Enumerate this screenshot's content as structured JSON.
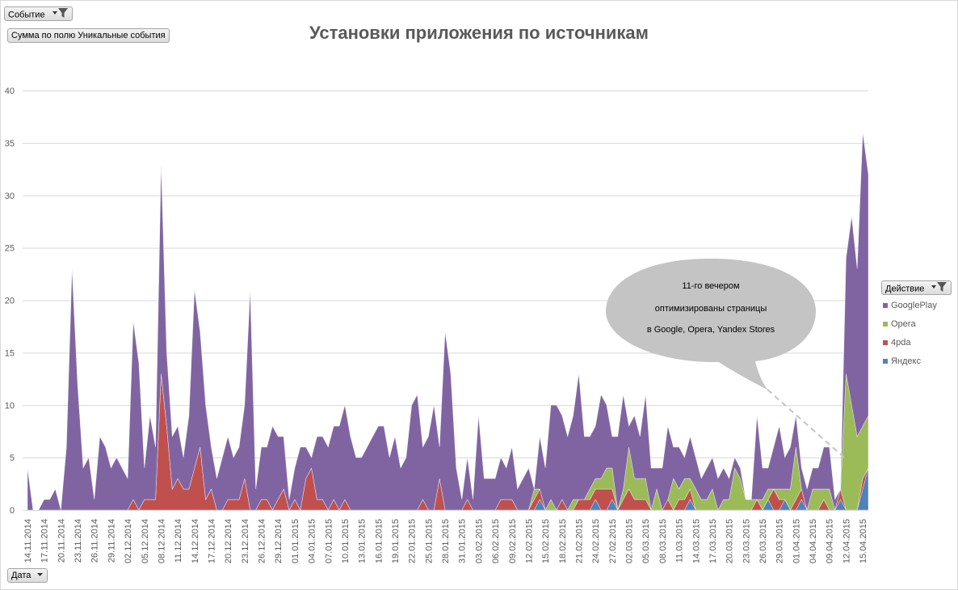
{
  "filters": {
    "event_label": "Событие",
    "value_field_label": "Сумма по полю Уникальные события",
    "axis_field_label": "Дата",
    "legend_field_label": "Действие"
  },
  "callout": {
    "line1": "11-го вечером",
    "line2": "оптимизированы страницы",
    "line3": "в Google, Opera, Yandex Stores"
  },
  "chart_data": {
    "type": "area",
    "stacked": true,
    "title": "Установки приложения по источникам",
    "xlabel": "",
    "ylabel": "",
    "ylim": [
      0,
      40
    ],
    "yticks": [
      0,
      5,
      10,
      15,
      20,
      25,
      30,
      35,
      40
    ],
    "grid": true,
    "legend_position": "right",
    "categories": [
      "14.11.2014",
      "15.11.2014",
      "16.11.2014",
      "17.11.2014",
      "18.11.2014",
      "19.11.2014",
      "20.11.2014",
      "21.11.2014",
      "22.11.2014",
      "23.11.2014",
      "24.11.2014",
      "25.11.2014",
      "26.11.2014",
      "27.11.2014",
      "28.11.2014",
      "29.11.2014",
      "30.11.2014",
      "01.12.2014",
      "02.12.2014",
      "03.12.2014",
      "04.12.2014",
      "05.12.2014",
      "06.12.2014",
      "07.12.2014",
      "08.12.2014",
      "09.12.2014",
      "10.12.2014",
      "11.12.2014",
      "12.12.2014",
      "13.12.2014",
      "14.12.2014",
      "15.12.2014",
      "16.12.2014",
      "17.12.2014",
      "18.12.2014",
      "19.12.2014",
      "20.12.2014",
      "21.12.2014",
      "22.12.2014",
      "23.12.2014",
      "24.12.2014",
      "25.12.2014",
      "26.12.2014",
      "27.12.2014",
      "28.12.2014",
      "29.12.2014",
      "30.12.2014",
      "31.12.2014",
      "01.01.2015",
      "02.01.2015",
      "03.01.2015",
      "04.01.2015",
      "05.01.2015",
      "06.01.2015",
      "07.01.2015",
      "08.01.2015",
      "09.01.2015",
      "10.01.2015",
      "11.01.2015",
      "12.01.2015",
      "13.01.2015",
      "14.01.2015",
      "15.01.2015",
      "16.01.2015",
      "17.01.2015",
      "18.01.2015",
      "19.01.2015",
      "20.01.2015",
      "21.01.2015",
      "22.01.2015",
      "23.01.2015",
      "24.01.2015",
      "25.01.2015",
      "26.01.2015",
      "27.01.2015",
      "28.01.2015",
      "29.01.2015",
      "30.01.2015",
      "31.01.2015",
      "01.02.2015",
      "02.02.2015",
      "03.02.2015",
      "04.02.2015",
      "05.02.2015",
      "06.02.2015",
      "07.02.2015",
      "08.02.2015",
      "09.02.2015",
      "10.02.2015",
      "11.02.2015",
      "12.02.2015",
      "13.02.2015",
      "14.02.2015",
      "15.02.2015",
      "16.02.2015",
      "17.02.2015",
      "18.02.2015",
      "19.02.2015",
      "20.02.2015",
      "21.02.2015",
      "22.02.2015",
      "23.02.2015",
      "24.02.2015",
      "25.02.2015",
      "26.02.2015",
      "27.02.2015",
      "28.02.2015",
      "01.03.2015",
      "02.03.2015",
      "03.03.2015",
      "04.03.2015",
      "05.03.2015",
      "06.03.2015",
      "07.03.2015",
      "08.03.2015",
      "09.03.2015",
      "10.03.2015",
      "11.03.2015",
      "12.03.2015",
      "13.03.2015",
      "14.03.2015",
      "15.03.2015",
      "16.03.2015",
      "17.03.2015",
      "18.03.2015",
      "19.03.2015",
      "20.03.2015",
      "21.03.2015",
      "22.03.2015",
      "23.03.2015",
      "24.03.2015",
      "25.03.2015",
      "26.03.2015",
      "27.03.2015",
      "28.03.2015",
      "29.03.2015",
      "30.03.2015",
      "31.03.2015",
      "01.04.2015",
      "02.04.2015",
      "03.04.2015",
      "04.04.2015",
      "07.04.2015",
      "08.04.2015",
      "09.04.2015",
      "10.04.2015",
      "11.04.2015",
      "12.04.2015",
      "13.04.2015",
      "14.04.2015",
      "15.04.2015",
      "16.04.2015"
    ],
    "series": [
      {
        "name": "Яндекс",
        "color": "#4F81BD",
        "values": [
          0,
          0,
          0,
          0,
          0,
          0,
          0,
          0,
          0,
          0,
          0,
          0,
          0,
          0,
          0,
          0,
          0,
          0,
          0,
          0,
          0,
          0,
          0,
          0,
          0,
          0,
          0,
          0,
          0,
          0,
          0,
          0,
          0,
          0,
          0,
          0,
          0,
          0,
          0,
          0,
          0,
          0,
          0,
          0,
          0,
          0,
          0,
          0,
          0,
          0,
          0,
          0,
          0,
          0,
          0,
          0,
          0,
          0,
          0,
          0,
          0,
          0,
          0,
          0,
          0,
          0,
          0,
          0,
          0,
          0,
          0,
          0,
          0,
          0,
          0,
          0,
          0,
          0,
          0,
          0,
          0,
          0,
          0,
          0,
          0,
          0,
          0,
          0,
          0,
          0,
          0,
          0,
          1,
          0,
          0,
          0,
          0,
          0,
          0,
          0,
          0,
          0,
          1,
          0,
          0,
          1,
          0,
          0,
          0,
          0,
          0,
          0,
          0,
          0,
          0,
          0,
          0,
          0,
          0,
          1,
          0,
          0,
          0,
          0,
          0,
          0,
          0,
          0,
          0,
          0,
          0,
          0,
          0,
          1,
          0,
          0,
          1,
          0,
          0,
          1,
          0,
          0,
          0,
          0,
          0,
          0,
          1,
          0,
          0,
          0,
          2,
          4
        ]
      },
      {
        "name": "4pda",
        "color": "#C0504D",
        "values": [
          0,
          0,
          0,
          0,
          0,
          0,
          0,
          0,
          0,
          0,
          0,
          0,
          0,
          0,
          0,
          0,
          0,
          0,
          0,
          1,
          0,
          1,
          1,
          1,
          13,
          8,
          2,
          3,
          2,
          2,
          4,
          6,
          1,
          2,
          0,
          0,
          1,
          1,
          1,
          3,
          0,
          0,
          1,
          1,
          0,
          1,
          2,
          0,
          1,
          0,
          3,
          4,
          1,
          1,
          0,
          1,
          0,
          1,
          0,
          0,
          0,
          0,
          0,
          0,
          0,
          0,
          0,
          0,
          0,
          0,
          0,
          1,
          0,
          0,
          3,
          0,
          0,
          0,
          0,
          1,
          0,
          0,
          0,
          0,
          0,
          1,
          1,
          1,
          0,
          0,
          0,
          1,
          1,
          0,
          0,
          0,
          1,
          0,
          0,
          1,
          1,
          1,
          1,
          2,
          2,
          1,
          0,
          1,
          2,
          1,
          1,
          1,
          0,
          0,
          0,
          1,
          0,
          1,
          1,
          1,
          0,
          0,
          0,
          0,
          0,
          0,
          0,
          0,
          0,
          0,
          0,
          1,
          0,
          0,
          2,
          1,
          0,
          0,
          1,
          1,
          0,
          0,
          0,
          1,
          0,
          0,
          1,
          0,
          0,
          0,
          1,
          0
        ]
      },
      {
        "name": "Opera",
        "color": "#9BBB59",
        "values": [
          0,
          0,
          0,
          0,
          0,
          0,
          0,
          0,
          0,
          0,
          0,
          0,
          0,
          0,
          0,
          0,
          0,
          0,
          0,
          0,
          0,
          0,
          0,
          0,
          0,
          0,
          0,
          0,
          0,
          0,
          0,
          0,
          0,
          0,
          0,
          0,
          0,
          0,
          0,
          0,
          0,
          0,
          0,
          0,
          0,
          0,
          0,
          0,
          0,
          0,
          0,
          0,
          0,
          0,
          0,
          0,
          0,
          0,
          0,
          0,
          0,
          0,
          0,
          0,
          0,
          0,
          0,
          0,
          0,
          0,
          0,
          0,
          0,
          0,
          0,
          0,
          0,
          0,
          0,
          0,
          0,
          0,
          0,
          0,
          0,
          0,
          0,
          0,
          0,
          0,
          0,
          1,
          0,
          0,
          1,
          0,
          0,
          0,
          1,
          0,
          0,
          1,
          1,
          1,
          2,
          2,
          0,
          1,
          4,
          2,
          2,
          2,
          0,
          2,
          0,
          0,
          3,
          1,
          2,
          1,
          2,
          1,
          1,
          2,
          0,
          1,
          1,
          4,
          3,
          1,
          1,
          0,
          1,
          1,
          0,
          1,
          1,
          2,
          5,
          0,
          0,
          2,
          2,
          1,
          2,
          0,
          0,
          13,
          10,
          7,
          5,
          5
        ]
      },
      {
        "name": "GooglePlay",
        "color": "#8064A2",
        "values": [
          4,
          0,
          0,
          1,
          1,
          2,
          0,
          6,
          23,
          12,
          4,
          5,
          1,
          7,
          6,
          4,
          5,
          4,
          3,
          17,
          14,
          3,
          8,
          5,
          20,
          7,
          5,
          5,
          3,
          7,
          17,
          11,
          9,
          4,
          3,
          5,
          6,
          4,
          5,
          7,
          21,
          2,
          5,
          5,
          8,
          6,
          5,
          1,
          3,
          6,
          3,
          1,
          6,
          6,
          6,
          7,
          8,
          9,
          7,
          5,
          5,
          6,
          7,
          8,
          8,
          5,
          7,
          4,
          5,
          10,
          11,
          5,
          7,
          10,
          3,
          17,
          13,
          4,
          1,
          4,
          1,
          9,
          3,
          3,
          3,
          4,
          3,
          5,
          2,
          3,
          4,
          0,
          5,
          4,
          9,
          10,
          8,
          7,
          8,
          12,
          6,
          5,
          5,
          8,
          6,
          3,
          7,
          9,
          2,
          6,
          4,
          8,
          4,
          2,
          4,
          7,
          3,
          4,
          2,
          4,
          3,
          2,
          3,
          3,
          3,
          3,
          2,
          1,
          1,
          0,
          0,
          8,
          3,
          2,
          4,
          6,
          3,
          4,
          3,
          2,
          2,
          2,
          2,
          4,
          4,
          1,
          0,
          11,
          18,
          16,
          28,
          23
        ]
      }
    ],
    "legend_order": [
      "GooglePlay",
      "Opera",
      "4pda",
      "Яндекс"
    ],
    "tick_label_every": 3
  }
}
